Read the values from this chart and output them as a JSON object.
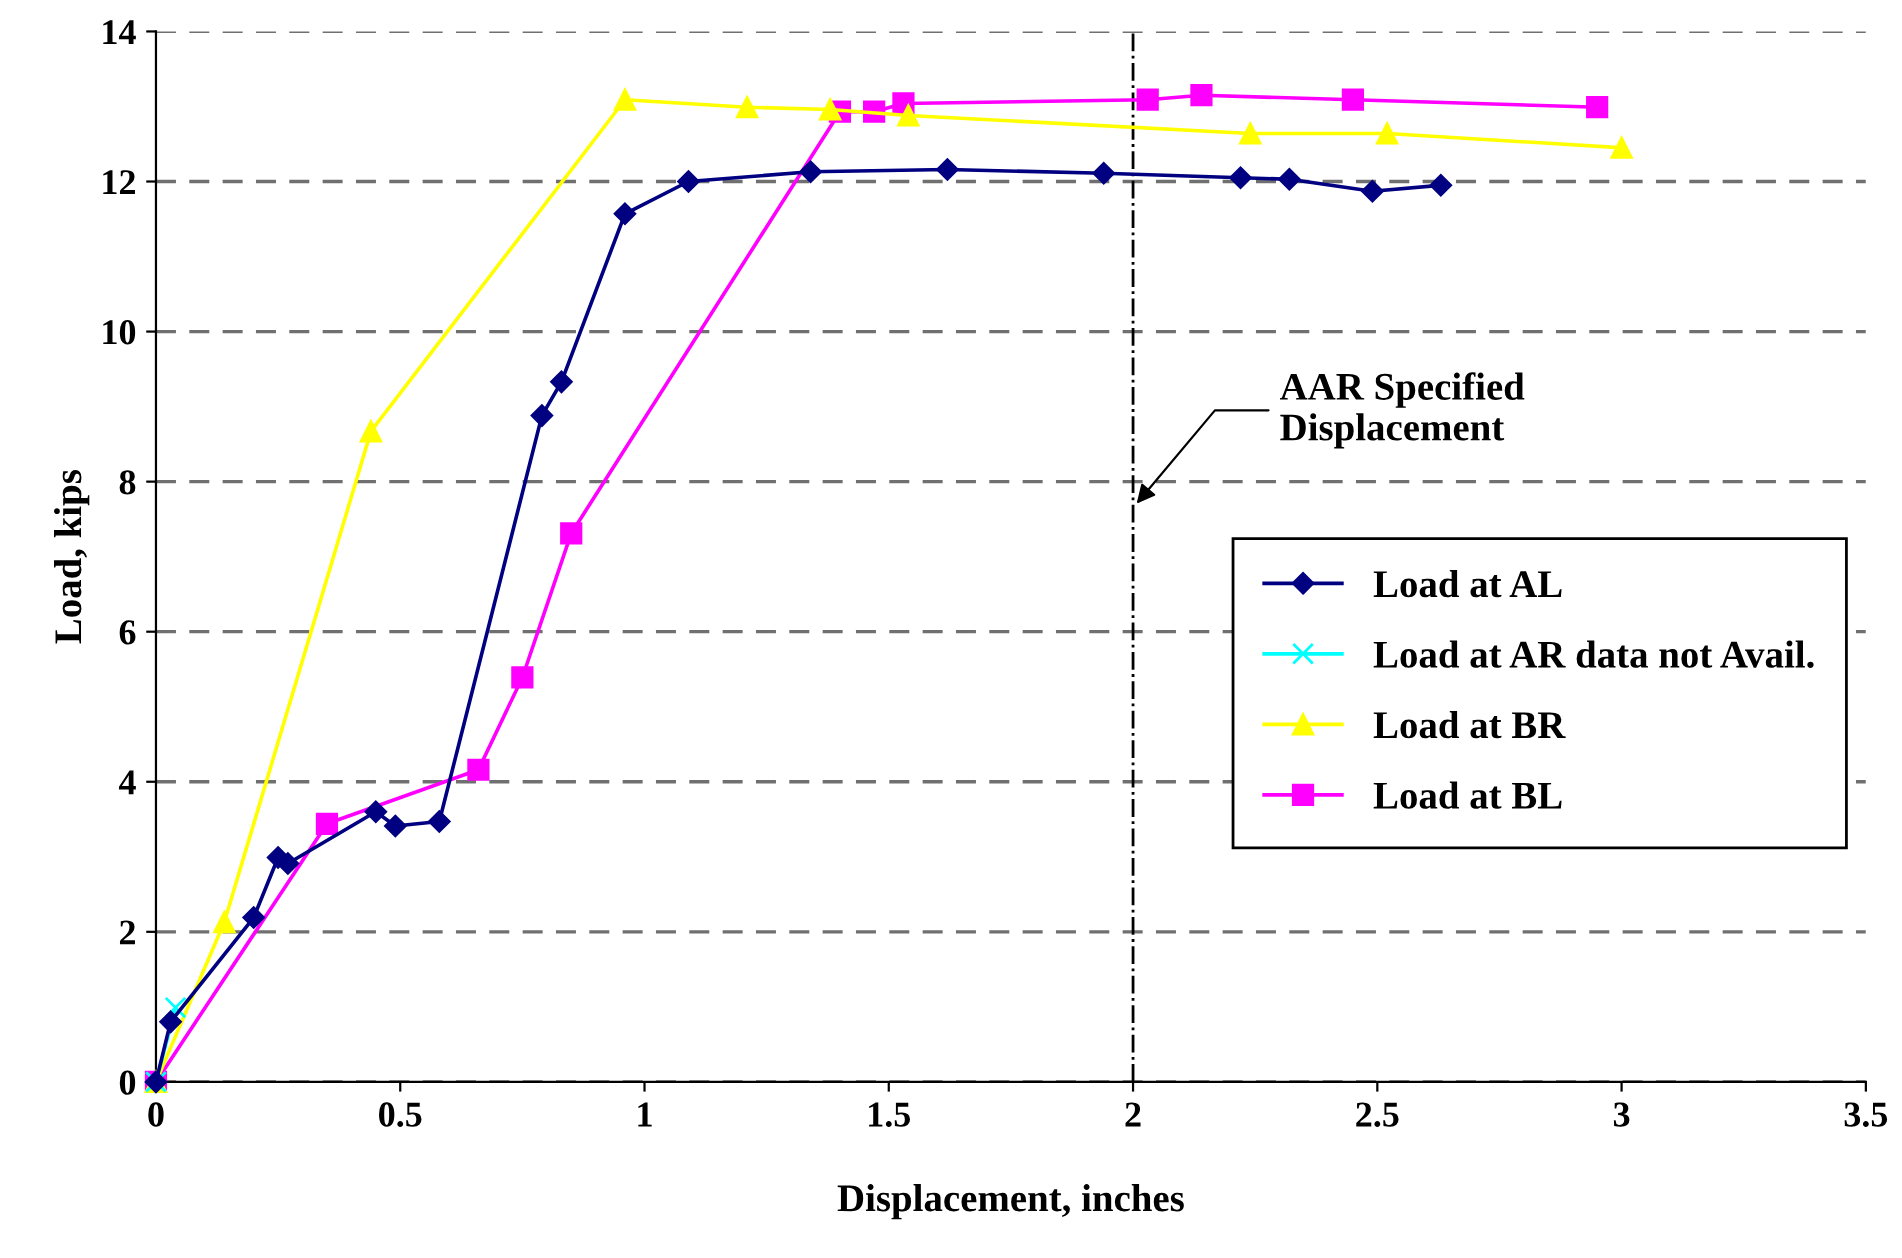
{
  "chart_data": {
    "type": "line",
    "xlabel": "Displacement, inches",
    "ylabel": "Load, kips",
    "xlim": [
      0,
      3.5
    ],
    "xticks": [
      0,
      0.5,
      1,
      1.5,
      2,
      2.5,
      3,
      3.5
    ],
    "ylim": [
      0,
      14
    ],
    "yticks": [
      0,
      2,
      4,
      6,
      8,
      10,
      12,
      14
    ],
    "grid": "y",
    "legend": "right",
    "line_style": "solid",
    "ref_lines": [
      {
        "axis": "x",
        "value": 2.0,
        "color": "#000000",
        "line_style": "dashdot"
      }
    ],
    "annotations": [
      {
        "text": "AAR Specified\nDisplacement",
        "x": 2.0,
        "y": 7.65
      }
    ],
    "series": [
      {
        "name": "Load at AL",
        "color": "#000080",
        "marker": "diamond",
        "x": [
          0,
          0.03,
          0.2,
          0.25,
          0.27,
          0.45,
          0.49,
          0.58,
          0.79,
          0.83,
          0.96,
          1.09,
          1.34,
          1.62,
          1.94,
          2.22,
          2.32,
          2.49,
          2.63
        ],
        "values": [
          0,
          0.8,
          2.19,
          2.99,
          2.91,
          3.6,
          3.41,
          3.47,
          8.88,
          9.33,
          11.57,
          12.0,
          12.13,
          12.16,
          12.11,
          12.05,
          12.03,
          11.87,
          11.95
        ]
      },
      {
        "name": "Load at AR data not Avail.",
        "color": "#00ffff",
        "marker": "cross",
        "x": [
          0,
          0.04
        ],
        "values": [
          0,
          0.99
        ]
      },
      {
        "name": "Load at BR",
        "color": "#ffff00",
        "marker": "triangle",
        "x": [
          0,
          0.14,
          0.44,
          0.96,
          1.21,
          1.38,
          1.54,
          2.24,
          2.52,
          3.0
        ],
        "values": [
          0,
          2.13,
          8.67,
          13.09,
          12.99,
          12.96,
          12.88,
          12.64,
          12.64,
          12.45
        ]
      },
      {
        "name": "Load at BL",
        "color": "#ff00ff",
        "marker": "square",
        "x": [
          0,
          0.35,
          0.66,
          0.75,
          0.85,
          1.4,
          1.47,
          1.53,
          2.03,
          2.14,
          2.45,
          2.95
        ],
        "values": [
          0,
          3.44,
          4.16,
          5.39,
          7.31,
          12.93,
          12.93,
          13.04,
          13.09,
          13.15,
          13.09,
          12.99
        ]
      }
    ]
  }
}
